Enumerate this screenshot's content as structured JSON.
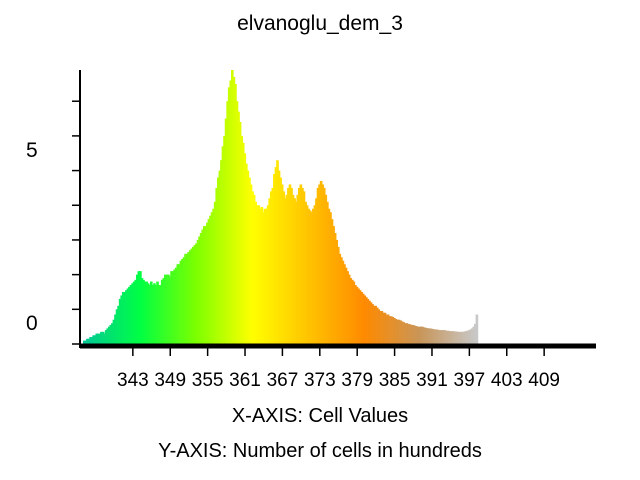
{
  "chart_data": {
    "type": "bar",
    "title": "elvanoglu_dem_3",
    "xlabel": "X-AXIS: Cell Values",
    "ylabel": "Y-AXIS: Number of cells in hundreds",
    "x_range": [
      335,
      417
    ],
    "ylim": [
      0,
      7.9
    ],
    "y_tick_labels": [
      {
        "value": 0,
        "label": "0"
      },
      {
        "value": 5,
        "label": "5"
      }
    ],
    "y_minor_ticks": [
      0,
      1,
      2,
      3,
      4,
      5,
      6,
      7
    ],
    "x_tick_labels": [
      "343",
      "349",
      "355",
      "361",
      "367",
      "373",
      "379",
      "385",
      "391",
      "397",
      "403",
      "409"
    ],
    "x_tick_values": [
      343,
      349,
      355,
      361,
      367,
      373,
      379,
      385,
      391,
      397,
      403,
      409
    ],
    "grid": false,
    "legend": "none",
    "color_ramp": [
      "#00c896",
      "#00ff44",
      "#7cff00",
      "#ffff00",
      "#ffc400",
      "#ff8a00",
      "#c8965a",
      "#c8c8c8"
    ],
    "x_start": 335.0,
    "x_step": 0.25,
    "values": [
      0.1,
      0.1,
      0.15,
      0.15,
      0.2,
      0.2,
      0.25,
      0.25,
      0.3,
      0.3,
      0.3,
      0.35,
      0.35,
      0.3,
      0.4,
      0.45,
      0.5,
      0.55,
      0.6,
      0.7,
      0.85,
      1.0,
      1.1,
      1.3,
      1.4,
      1.5,
      1.5,
      1.55,
      1.6,
      1.65,
      1.7,
      1.75,
      1.8,
      1.85,
      2.0,
      2.1,
      2.1,
      1.9,
      1.85,
      1.8,
      1.8,
      1.75,
      1.7,
      1.8,
      1.7,
      1.75,
      1.7,
      1.8,
      1.7,
      1.7,
      1.85,
      1.9,
      2.0,
      2.0,
      2.0,
      1.95,
      2.1,
      2.1,
      2.15,
      2.2,
      2.3,
      2.3,
      2.4,
      2.45,
      2.5,
      2.6,
      2.6,
      2.65,
      2.7,
      2.75,
      2.8,
      2.85,
      2.9,
      3.0,
      3.1,
      3.2,
      3.3,
      3.4,
      3.4,
      3.5,
      3.6,
      3.7,
      3.8,
      3.9,
      4.1,
      4.5,
      4.8,
      5.0,
      5.3,
      5.7,
      6.0,
      6.5,
      7.0,
      7.4,
      7.6,
      7.9,
      7.7,
      7.5,
      7.0,
      6.7,
      6.4,
      6.0,
      5.8,
      5.5,
      5.2,
      5.0,
      4.8,
      4.6,
      4.4,
      4.3,
      4.1,
      4.0,
      4.0,
      3.9,
      3.95,
      3.8,
      3.9,
      3.9,
      4.0,
      4.2,
      4.4,
      4.5,
      4.9,
      5.1,
      5.3,
      5.0,
      4.8,
      4.6,
      4.4,
      4.2,
      4.3,
      4.5,
      4.6,
      4.5,
      4.3,
      4.2,
      4.1,
      4.3,
      4.5,
      4.6,
      4.5,
      4.4,
      4.1,
      4.0,
      3.9,
      3.85,
      3.8,
      3.9,
      4.0,
      4.2,
      4.5,
      4.6,
      4.7,
      4.6,
      4.5,
      4.3,
      4.1,
      3.9,
      3.8,
      3.6,
      3.4,
      3.2,
      3.0,
      2.8,
      2.6,
      2.5,
      2.4,
      2.3,
      2.2,
      2.1,
      2.0,
      1.9,
      1.85,
      1.8,
      1.7,
      1.65,
      1.6,
      1.55,
      1.5,
      1.45,
      1.4,
      1.35,
      1.3,
      1.25,
      1.2,
      1.15,
      1.1,
      1.1,
      1.05,
      1.0,
      0.95,
      0.95,
      0.9,
      0.9,
      0.85,
      0.85,
      0.8,
      0.8,
      0.78,
      0.75,
      0.72,
      0.7,
      0.7,
      0.68,
      0.65,
      0.63,
      0.6,
      0.6,
      0.58,
      0.57,
      0.55,
      0.55,
      0.53,
      0.52,
      0.5,
      0.5,
      0.5,
      0.5,
      0.48,
      0.47,
      0.46,
      0.45,
      0.45,
      0.44,
      0.43,
      0.42,
      0.42,
      0.41,
      0.4,
      0.4,
      0.4,
      0.4,
      0.39,
      0.38,
      0.38,
      0.37,
      0.37,
      0.37,
      0.36,
      0.36,
      0.35,
      0.35,
      0.35,
      0.35,
      0.36,
      0.37,
      0.38,
      0.4,
      0.42,
      0.45,
      0.5,
      0.58,
      0.85
    ]
  }
}
